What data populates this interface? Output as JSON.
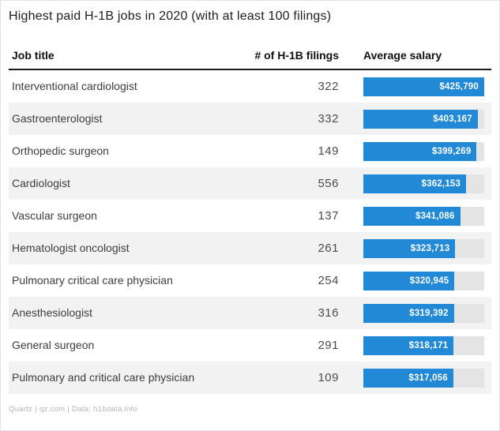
{
  "title": "Highest paid H-1B jobs in 2020 (with at least 100 filings)",
  "columns": {
    "job": "Job title",
    "filings": "# of H-1B filings",
    "salary": "Average salary"
  },
  "rows": [
    {
      "job": "Interventional cardiologist",
      "filings": "322",
      "salary": 425790,
      "salary_label": "$425,790"
    },
    {
      "job": "Gastroenterologist",
      "filings": "332",
      "salary": 403167,
      "salary_label": "$403,167"
    },
    {
      "job": "Orthopedic surgeon",
      "filings": "149",
      "salary": 399269,
      "salary_label": "$399,269"
    },
    {
      "job": "Cardiologist",
      "filings": "556",
      "salary": 362153,
      "salary_label": "$362,153"
    },
    {
      "job": "Vascular surgeon",
      "filings": "137",
      "salary": 341086,
      "salary_label": "$341,086"
    },
    {
      "job": "Hematologist oncologist",
      "filings": "261",
      "salary": 323713,
      "salary_label": "$323,713"
    },
    {
      "job": "Pulmonary critical care physician",
      "filings": "254",
      "salary": 320945,
      "salary_label": "$320,945"
    },
    {
      "job": "Anesthesiologist",
      "filings": "316",
      "salary": 319392,
      "salary_label": "$319,392"
    },
    {
      "job": "General surgeon",
      "filings": "291",
      "salary": 318171,
      "salary_label": "$318,171"
    },
    {
      "job": "Pulmonary and critical care physician",
      "filings": "109",
      "salary": 317056,
      "salary_label": "$317,056"
    }
  ],
  "footer": "Quartz | qz.com | Data: h1bdata.info",
  "colors": {
    "bar": "#2189d6",
    "bar_track": "#e4e4e4",
    "row_alternate": "#f2f2f2",
    "header_rule": "#1c1c1c"
  },
  "chart_data": {
    "type": "bar",
    "orientation": "horizontal",
    "title": "Highest paid H-1B jobs in 2020 (with at least 100 filings)",
    "categories": [
      "Interventional cardiologist",
      "Gastroenterologist",
      "Orthopedic surgeon",
      "Cardiologist",
      "Vascular surgeon",
      "Hematologist oncologist",
      "Pulmonary critical care physician",
      "Anesthesiologist",
      "General surgeon",
      "Pulmonary and critical care physician"
    ],
    "series": [
      {
        "name": "# of H-1B filings",
        "values": [
          322,
          332,
          149,
          556,
          137,
          261,
          254,
          316,
          291,
          109
        ]
      },
      {
        "name": "Average salary",
        "values": [
          425790,
          403167,
          399269,
          362153,
          341086,
          323713,
          320945,
          319392,
          318171,
          317056
        ]
      }
    ],
    "value_labels": [
      "$425,790",
      "$403,167",
      "$399,269",
      "$362,153",
      "$341,086",
      "$323,713",
      "$320,945",
      "$319,392",
      "$318,171",
      "$317,056"
    ],
    "xlim": [
      0,
      425790
    ],
    "grid": false,
    "legend": false,
    "source": "Quartz | qz.com | Data: h1bdata.info"
  }
}
